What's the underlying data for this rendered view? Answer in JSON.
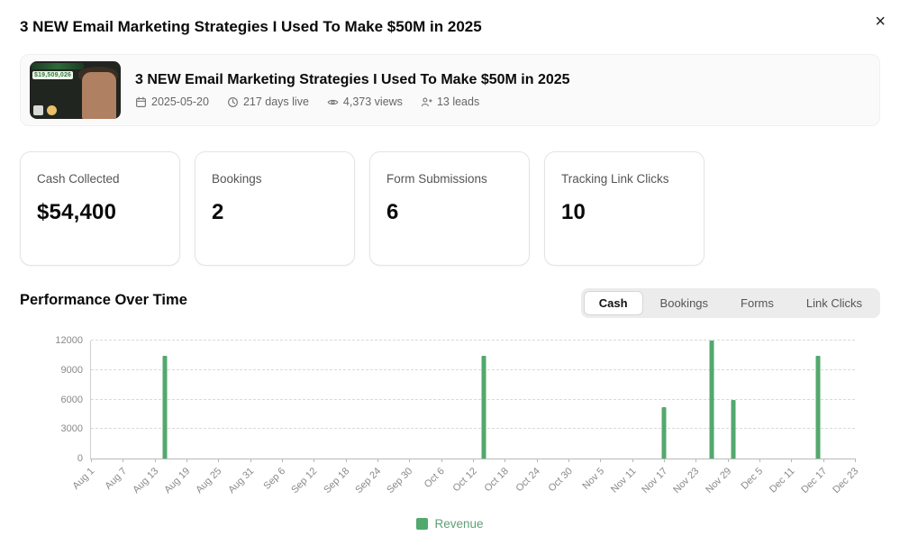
{
  "icons": {
    "close": "×"
  },
  "modal": {
    "title": "3 NEW Email Marketing Strategies I Used To Make $50M in 2025"
  },
  "video_card": {
    "title": "3 NEW Email Marketing Strategies I Used To Make $50M in 2025",
    "thumbnail_text": "$19,509,026",
    "date": "2025-05-20",
    "days_live": "217 days live",
    "views": "4,373 views",
    "leads": "13 leads"
  },
  "stats": [
    {
      "label": "Cash Collected",
      "value": "$54,400"
    },
    {
      "label": "Bookings",
      "value": "2"
    },
    {
      "label": "Form Submissions",
      "value": "6"
    },
    {
      "label": "Tracking Link Clicks",
      "value": "10"
    }
  ],
  "performance": {
    "title": "Performance Over Time",
    "tabs": [
      {
        "label": "Cash",
        "active": true
      },
      {
        "label": "Bookings",
        "active": false
      },
      {
        "label": "Forms",
        "active": false
      },
      {
        "label": "Link Clicks",
        "active": false
      }
    ]
  },
  "chart_data": {
    "type": "bar",
    "title": "Performance Over Time",
    "series_name": "Revenue",
    "bar_color": "#53a86e",
    "ylim": [
      0,
      12000
    ],
    "y_ticks": [
      0,
      3000,
      6000,
      9000,
      12000
    ],
    "grid": "dashed-horizontal",
    "legend_position": "bottom-center",
    "x_tick_labels": [
      "Aug 1",
      "Aug 7",
      "Aug 13",
      "Aug 19",
      "Aug 25",
      "Aug 31",
      "Sep 6",
      "Sep 12",
      "Sep 18",
      "Sep 24",
      "Sep 30",
      "Oct 6",
      "Oct 12",
      "Oct 18",
      "Oct 24",
      "Oct 30",
      "Nov 5",
      "Nov 11",
      "Nov 17",
      "Nov 23",
      "Nov 29",
      "Dec 5",
      "Dec 11",
      "Dec 17",
      "Dec 23"
    ],
    "points": [
      {
        "date": "Aug 15",
        "value": 10400
      },
      {
        "date": "Oct 14",
        "value": 10400
      },
      {
        "date": "Nov 17",
        "value": 5200
      },
      {
        "date": "Nov 26",
        "value": 12000
      },
      {
        "date": "Nov 30",
        "value": 6000
      },
      {
        "date": "Dec 16",
        "value": 10400
      }
    ]
  }
}
